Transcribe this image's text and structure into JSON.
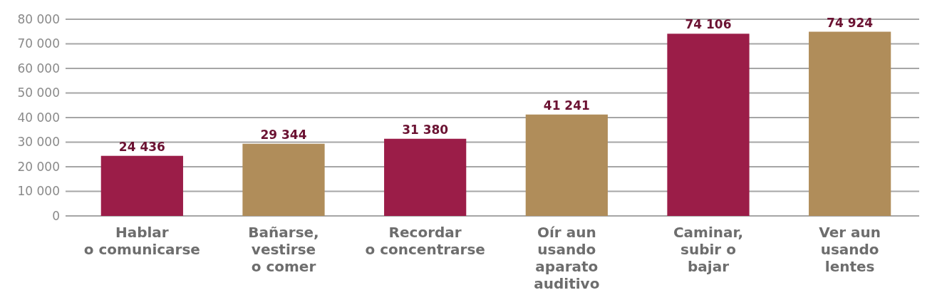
{
  "chart_data": {
    "type": "bar",
    "categories": [
      "Hablar\no comunicarse",
      "Bañarse,\nvestirse\no comer",
      "Recordar\no concentrarse",
      "Oír aun\nusando\naparato\nauditivo",
      "Caminar,\nsubir o\nbajar",
      "Ver aun\nusando\nlentes"
    ],
    "values": [
      24436,
      29344,
      31380,
      41241,
      74106,
      74924
    ],
    "colors": [
      "#9b1d48",
      "#b08d5a",
      "#9b1d48",
      "#b08d5a",
      "#9b1d48",
      "#b08d5a"
    ],
    "value_labels": [
      "24 436",
      "29 344",
      "31 380",
      "41 241",
      "74 106",
      "74 924"
    ],
    "ylim": [
      0,
      80000
    ],
    "yticks": [
      {
        "value": 0,
        "label": "0"
      },
      {
        "value": 10000,
        "label": "10 000"
      },
      {
        "value": 20000,
        "label": "20 000"
      },
      {
        "value": 30000,
        "label": "30 000"
      },
      {
        "value": 40000,
        "label": "40 000"
      },
      {
        "value": 50000,
        "label": "50 000"
      },
      {
        "value": 60000,
        "label": "60 000"
      },
      {
        "value": 70000,
        "label": "70 000"
      },
      {
        "value": 80000,
        "label": "80 000"
      }
    ],
    "grid": "y"
  }
}
